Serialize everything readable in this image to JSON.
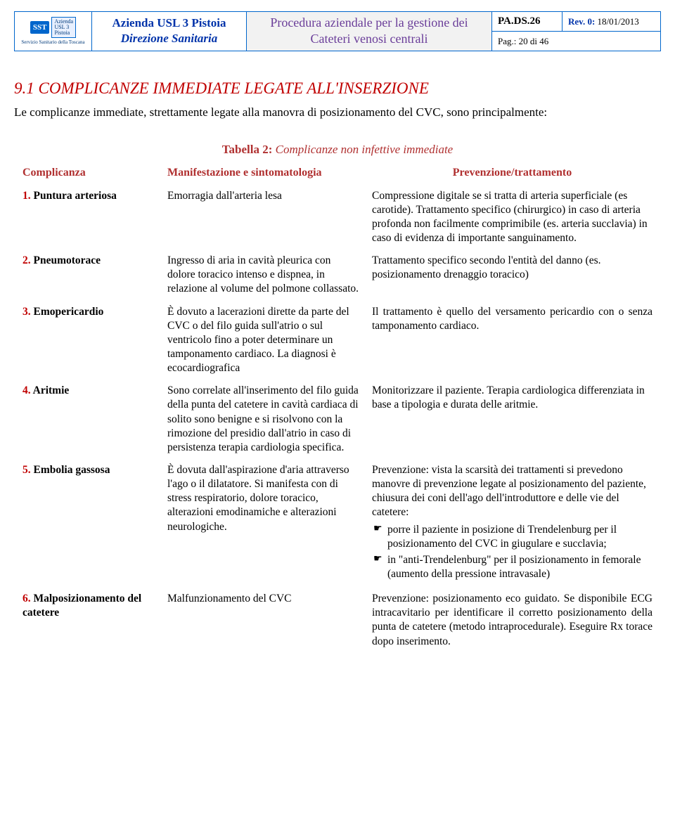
{
  "header": {
    "org_line1": "Azienda USL 3 Pistoia",
    "org_line2": "Direzione Sanitaria",
    "doc_title_line1": "Procedura aziendale per la gestione dei",
    "doc_title_line2": "Cateteri venosi centrali",
    "code": "PA.DS.26",
    "rev_label": "Rev. 0:",
    "rev_date": "18/01/2013",
    "page": "Pag.: 20 di 46",
    "logo_sst": "SST",
    "logo_small1": "Azienda",
    "logo_small2": "USL 3",
    "logo_small3": "Pistoia",
    "logo_sub": "Servizio Sanitario della Toscana"
  },
  "section": {
    "title": "9.1 COMPLICANZE IMMEDIATE LEGATE ALL'INSERZIONE",
    "intro": "Le complicanze immediate, strettamente legate alla manovra di posizionamento del CVC, sono principalmente:"
  },
  "table": {
    "caption": "Tabella 2: ",
    "caption_em": "Complicanze non infettive immediate",
    "col1": "Complicanza",
    "col2": "Manifestazione e sintomatologia",
    "col3": "Prevenzione/trattamento",
    "rows": [
      {
        "num": "1.",
        "name": " Puntura arteriosa",
        "manif": "Emorragia dall'arteria lesa",
        "prev": "Compressione digitale se si tratta di arteria superficiale (es carotide). Trattamento specifico (chirurgico) in caso di arteria profonda non facilmente comprimibile (es. arteria succlavia) in caso di evidenza di importante sanguinamento."
      },
      {
        "num": "2.",
        "name": " Pneumotorace",
        "manif": "Ingresso di aria in cavità pleurica con dolore toracico intenso e dispnea, in relazione al volume del polmone collassato.",
        "prev": "Trattamento specifico secondo l'entità del danno (es. posizionamento drenaggio toracico)"
      },
      {
        "num": "3.",
        "name": " Emopericardio",
        "manif": "È dovuto a lacerazioni dirette da parte del CVC o del filo guida sull'atrio o sul ventricolo fino a poter determinare un tamponamento cardiaco. La diagnosi è ecocardiografica",
        "prev": "Il trattamento è quello del versamento pericardio con o senza tamponamento cardiaco.",
        "prev_justify": true
      },
      {
        "num": "4.",
        "name": " Aritmie",
        "manif": "Sono correlate all'inserimento del filo guida della punta del catetere in cavità cardiaca di solito sono benigne e si risolvono con la rimozione del presidio dall'atrio in caso di persistenza terapia cardiologia specifica.",
        "prev": "Monitorizzare il paziente. Terapia cardiologica differenziata in base a tipologia e durata delle aritmie."
      },
      {
        "num": "5.",
        "name": " Embolia gassosa",
        "manif": "È dovuta dall'aspirazione d'aria attraverso l'ago o il dilatatore. Si manifesta con di stress respiratorio, dolore toracico, alterazioni emodinamiche e alterazioni neurologiche.",
        "prev": "Prevenzione: vista la scarsità dei trattamenti si prevedono manovre di prevenzione legate al posizionamento del paziente, chiusura dei coni dell'ago dell'introduttore e delle vie del catetere:",
        "bullets": [
          "porre il paziente in posizione di Trendelenburg per il posizionamento del CVC in giugulare e succlavia;",
          "in \"anti-Trendelenburg\" per il posizionamento in femorale (aumento della pressione intravasale)"
        ]
      },
      {
        "num": "6.",
        "name": " Malposizionamento del catetere",
        "manif": "Malfunzionamento del CVC",
        "prev": "Prevenzione: posizionamento eco guidato. Se disponibile ECG intracavitario per identificare il corretto posizionamento della punta de catetere (metodo intraprocedurale). Eseguire Rx torace dopo inserimento.",
        "prev_justify": true
      }
    ]
  }
}
